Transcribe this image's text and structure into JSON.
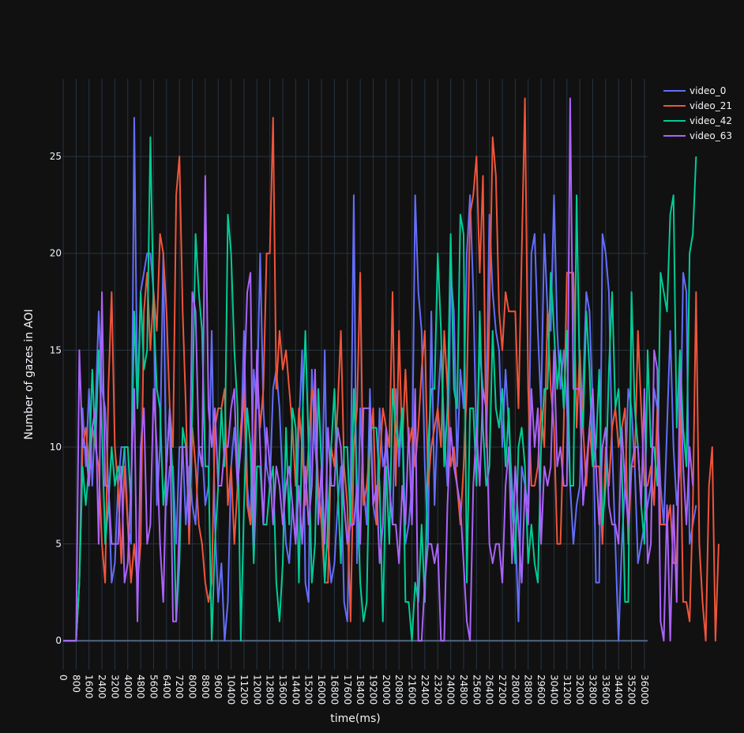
{
  "chart_data": {
    "type": "line",
    "title": "",
    "xlabel": "time(ms)",
    "ylabel": "Number of gazes in AOI",
    "xlim": [
      0,
      36200
    ],
    "ylim": [
      -1.5,
      29
    ],
    "x_ticks": [
      0,
      800,
      1600,
      2400,
      3200,
      4000,
      4800,
      5600,
      6400,
      7200,
      8000,
      8800,
      9600,
      10400,
      11200,
      12000,
      12800,
      13600,
      14400,
      15200,
      16000,
      16800,
      17600,
      18400,
      19200,
      20000,
      20800,
      21600,
      22400,
      23200,
      24000,
      24800,
      25600,
      26400,
      27200,
      28000,
      28800,
      29600,
      30400,
      31200,
      32000,
      32800,
      33600,
      34400,
      35200,
      36000
    ],
    "y_ticks": [
      0,
      5,
      10,
      15,
      20,
      25
    ],
    "x_tick_labels": [
      "0",
      "800",
      "1600",
      "2400",
      "3200",
      "4000",
      "4800",
      "5600",
      "6400",
      "7200",
      "8000",
      "8800",
      "9600",
      "10400",
      "11200",
      "12000",
      "12800",
      "13600",
      "14400",
      "15200",
      "16000",
      "16800",
      "17600",
      "18400",
      "19200",
      "20000",
      "20800",
      "21600",
      "22400",
      "23200",
      "24000",
      "24800",
      "25600",
      "26400",
      "27200",
      "28000",
      "28800",
      "29600",
      "30400",
      "31200",
      "32000",
      "32800",
      "33600",
      "34400",
      "35200",
      "36000"
    ],
    "y_tick_labels": [
      "0",
      "5",
      "10",
      "15",
      "20",
      "25"
    ],
    "x_start": 0,
    "x_step": 200,
    "grid": true,
    "legend_position": "top-right",
    "series": [
      {
        "name": "video_0",
        "color": "#636efa",
        "values": [
          0,
          0,
          0,
          0,
          0,
          3,
          12,
          9,
          13,
          8,
          12,
          17,
          13,
          12,
          8,
          3,
          4,
          8,
          10,
          10,
          6,
          5,
          27,
          12,
          18,
          19,
          20,
          20,
          18,
          7,
          10,
          20,
          7,
          9,
          9,
          5,
          10,
          10,
          6,
          9,
          7,
          6,
          10,
          10,
          7,
          8,
          16,
          6,
          2,
          4,
          0,
          2,
          9,
          11,
          8,
          10,
          16,
          8,
          6,
          14,
          12,
          20,
          12,
          9,
          8,
          13,
          14,
          12,
          8,
          5,
          4,
          7,
          5,
          11,
          15,
          3,
          2,
          14,
          10,
          8,
          6,
          15,
          5,
          3,
          4,
          7,
          9,
          2,
          1,
          8,
          23,
          4,
          12,
          8,
          6,
          13,
          7,
          6,
          12,
          9,
          10,
          8,
          6,
          13,
          9,
          12,
          5,
          6,
          8,
          23,
          18,
          16,
          9,
          5,
          17,
          7,
          12,
          15,
          11,
          8,
          19,
          17,
          9,
          14,
          12,
          20,
          23,
          18,
          10,
          15,
          13,
          12,
          22,
          18,
          16,
          15,
          10,
          14,
          11,
          8,
          6,
          1,
          9,
          8,
          7,
          20,
          21,
          16,
          12,
          21,
          17,
          16,
          23,
          16,
          13,
          15,
          12,
          8,
          5,
          7,
          8,
          13,
          18,
          17,
          12,
          3,
          3,
          21,
          20,
          18,
          10,
          5,
          0,
          5,
          8,
          13,
          12,
          9,
          4,
          5,
          6,
          7,
          8,
          13,
          12,
          8,
          6,
          11,
          16,
          10,
          7,
          9,
          19,
          18,
          5,
          6,
          7
        ]
      },
      {
        "name": "video_21",
        "color": "#ef553b",
        "values": [
          0,
          0,
          0,
          0,
          0,
          3,
          10,
          11,
          9,
          11,
          10,
          9,
          5,
          3,
          13,
          18,
          10,
          8,
          4,
          9,
          6,
          3,
          5,
          3,
          5,
          17,
          19,
          15,
          18,
          16,
          21,
          20,
          17,
          12,
          10,
          23,
          25,
          17,
          12,
          5,
          11,
          9,
          6,
          5,
          3,
          2,
          3,
          11,
          12,
          12,
          13,
          7,
          9,
          5,
          8,
          11,
          13,
          7,
          6,
          9,
          14,
          11,
          13,
          20,
          20,
          27,
          13,
          16,
          14,
          15,
          13,
          11,
          8,
          12,
          10,
          7,
          10,
          13,
          12,
          8,
          6,
          3,
          3,
          10,
          9,
          12,
          16,
          9,
          7,
          1,
          10,
          12,
          19,
          7,
          8,
          10,
          12,
          6,
          9,
          12,
          11,
          10,
          18,
          8,
          16,
          10,
          14,
          10,
          11,
          9,
          11,
          14,
          16,
          8,
          10,
          11,
          12,
          10,
          16,
          13,
          9,
          10,
          8,
          6,
          9,
          13,
          22,
          23,
          25,
          19,
          24,
          10,
          17,
          26,
          24,
          17,
          15,
          18,
          17,
          17,
          17,
          12,
          20,
          28,
          13,
          8,
          8,
          9,
          12,
          10,
          17,
          13,
          11,
          5,
          5,
          11,
          19,
          19,
          19,
          11,
          15,
          11,
          8,
          11,
          9,
          9,
          9,
          5,
          10,
          8,
          11,
          12,
          10,
          11,
          12,
          5,
          9,
          9,
          16,
          12,
          8,
          8,
          9,
          7,
          12,
          6,
          6,
          6,
          7,
          4,
          4,
          12,
          2,
          2,
          1,
          7,
          18,
          5,
          2,
          0,
          8,
          10,
          0,
          5
        ]
      },
      {
        "name": "video_42",
        "color": "#00cc96",
        "values": [
          0,
          0,
          0,
          0,
          0,
          3,
          9,
          7,
          9,
          14,
          10,
          15,
          11,
          5,
          7,
          10,
          8,
          9,
          8,
          10,
          10,
          7,
          17,
          12,
          18,
          14,
          15,
          26,
          17,
          13,
          12,
          7,
          9,
          12,
          8,
          1,
          4,
          11,
          10,
          6,
          12,
          21,
          18,
          16,
          9,
          9,
          0,
          5,
          8,
          12,
          9,
          22,
          20,
          15,
          12,
          0,
          7,
          12,
          10,
          4,
          9,
          9,
          6,
          6,
          8,
          9,
          3,
          1,
          4,
          11,
          6,
          12,
          11,
          3,
          11,
          16,
          10,
          3,
          5,
          13,
          9,
          3,
          6,
          10,
          13,
          8,
          4,
          10,
          10,
          6,
          13,
          8,
          3,
          1,
          2,
          11,
          11,
          11,
          8,
          1,
          9,
          5,
          13,
          11,
          10,
          12,
          2,
          2,
          0,
          3,
          2,
          6,
          2,
          10,
          13,
          13,
          20,
          16,
          9,
          12,
          21,
          13,
          12,
          22,
          21,
          3,
          12,
          12,
          8,
          17,
          11,
          8,
          9,
          16,
          12,
          11,
          13,
          9,
          12,
          7,
          4,
          10,
          11,
          9,
          4,
          6,
          4,
          3,
          10,
          13,
          13,
          19,
          16,
          13,
          15,
          12,
          16,
          8,
          8,
          23,
          13,
          11,
          17,
          14,
          9,
          10,
          14,
          6,
          8,
          14,
          18,
          12,
          13,
          9,
          2,
          2,
          18,
          12,
          10,
          7,
          5,
          15,
          10,
          10,
          8,
          19,
          18,
          17,
          22,
          23,
          11,
          15,
          11,
          9,
          20,
          21,
          25
        ]
      },
      {
        "name": "video_63",
        "color": "#ab63fa",
        "values": [
          0,
          0,
          0,
          0,
          0,
          15,
          10,
          10,
          8,
          11,
          12,
          5,
          18,
          8,
          8,
          5,
          5,
          5,
          9,
          3,
          4,
          8,
          13,
          1,
          10,
          12,
          5,
          6,
          13,
          10,
          5,
          2,
          9,
          12,
          1,
          1,
          6,
          10,
          10,
          6,
          18,
          17,
          10,
          9,
          24,
          12,
          10,
          12,
          8,
          8,
          10,
          10,
          12,
          13,
          8,
          10,
          13,
          18,
          19,
          5,
          15,
          10,
          6,
          11,
          9,
          6,
          9,
          8,
          6,
          8,
          9,
          7,
          5,
          8,
          5,
          9,
          6,
          8,
          14,
          6,
          9,
          5,
          11,
          8,
          8,
          11,
          10,
          7,
          5,
          6,
          6,
          8,
          5,
          12,
          12,
          12,
          7,
          8,
          4,
          6,
          11,
          8,
          6,
          6,
          4,
          8,
          6,
          11,
          6,
          13,
          0,
          0,
          3,
          5,
          5,
          4,
          5,
          0,
          0,
          7,
          11,
          9,
          8,
          7,
          4,
          1,
          0,
          8,
          11,
          8,
          13,
          12,
          5,
          4,
          5,
          5,
          3,
          8,
          10,
          4,
          9,
          6,
          3,
          8,
          6,
          13,
          10,
          12,
          5,
          9,
          8,
          9,
          15,
          9,
          10,
          8,
          8,
          28,
          13,
          13,
          13,
          7,
          9,
          11,
          13,
          9,
          6,
          10,
          11,
          7,
          6,
          6,
          5,
          11,
          8,
          6,
          9,
          10,
          10,
          7,
          13,
          4,
          5,
          15,
          14,
          1,
          0,
          7,
          0,
          7,
          2,
          14,
          9,
          6,
          10,
          8
        ]
      }
    ]
  }
}
